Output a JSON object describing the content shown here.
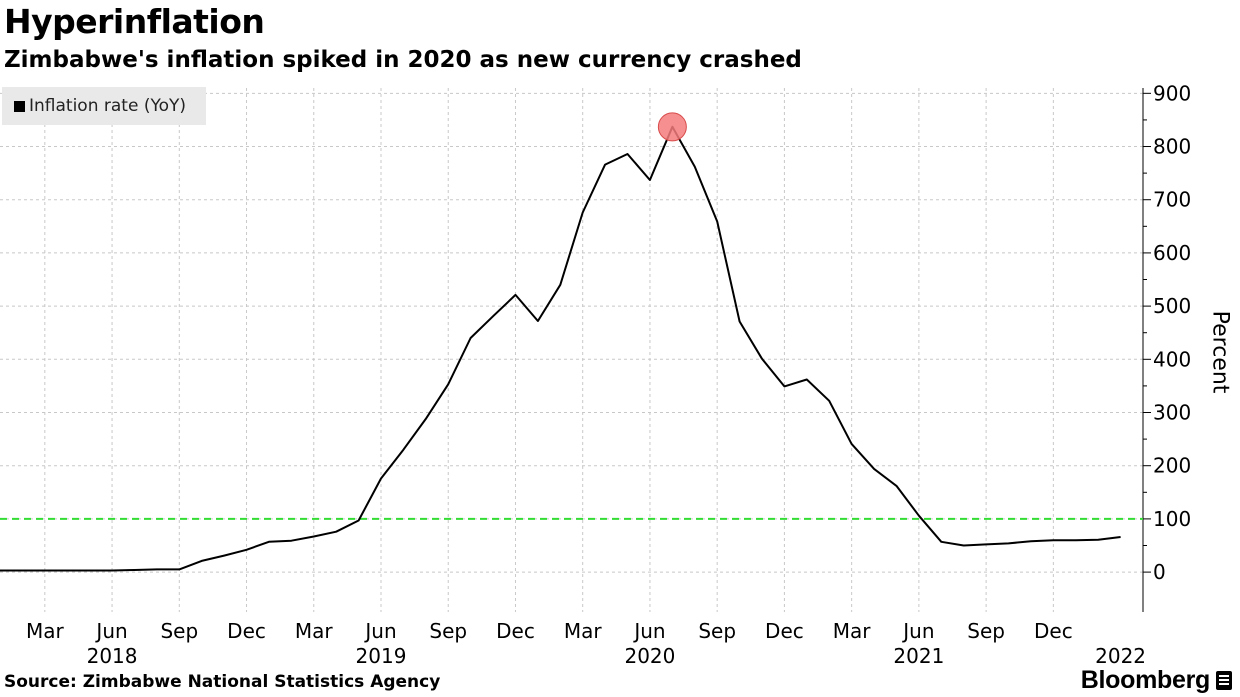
{
  "chart_data": {
    "type": "line",
    "title": "Hyperinflation",
    "subtitle": "Zimbabwe's inflation spiked in 2020 as new currency crashed",
    "ylabel": "Percent",
    "ylim": [
      -75,
      910
    ],
    "yticks": [
      0,
      100,
      200,
      300,
      400,
      500,
      600,
      700,
      800,
      900
    ],
    "grid": true,
    "legend_position": "top-left",
    "x_month_ticks": [
      {
        "label": "Mar",
        "date": "2018-03"
      },
      {
        "label": "Jun",
        "date": "2018-06"
      },
      {
        "label": "Sep",
        "date": "2018-09"
      },
      {
        "label": "Dec",
        "date": "2018-12"
      },
      {
        "label": "Mar",
        "date": "2019-03"
      },
      {
        "label": "Jun",
        "date": "2019-06"
      },
      {
        "label": "Sep",
        "date": "2019-09"
      },
      {
        "label": "Dec",
        "date": "2019-12"
      },
      {
        "label": "Mar",
        "date": "2020-03"
      },
      {
        "label": "Jun",
        "date": "2020-06"
      },
      {
        "label": "Sep",
        "date": "2020-09"
      },
      {
        "label": "Dec",
        "date": "2020-12"
      },
      {
        "label": "Mar",
        "date": "2021-03"
      },
      {
        "label": "Jun",
        "date": "2021-06"
      },
      {
        "label": "Sep",
        "date": "2021-09"
      },
      {
        "label": "Dec",
        "date": "2021-12"
      }
    ],
    "x_year_labels": [
      {
        "label": "2018",
        "date": "2018-06"
      },
      {
        "label": "2019",
        "date": "2019-06"
      },
      {
        "label": "2020",
        "date": "2020-06"
      },
      {
        "label": "2021",
        "date": "2021-06"
      },
      {
        "label": "2022",
        "date": "2022-03"
      }
    ],
    "reference_line": {
      "value": 100,
      "color": "#33dd33",
      "style": "dashed"
    },
    "highlight": {
      "date": "2020-07",
      "value": 837,
      "color": "#f47d7d"
    },
    "series": [
      {
        "name": "Inflation rate (YoY)",
        "color": "#000000",
        "x": [
          "2018-01",
          "2018-02",
          "2018-03",
          "2018-04",
          "2018-05",
          "2018-06",
          "2018-07",
          "2018-08",
          "2018-09",
          "2018-10",
          "2018-11",
          "2018-12",
          "2019-01",
          "2019-02",
          "2019-03",
          "2019-04",
          "2019-05",
          "2019-06",
          "2019-07",
          "2019-08",
          "2019-09",
          "2019-10",
          "2019-11",
          "2019-12",
          "2020-01",
          "2020-02",
          "2020-03",
          "2020-04",
          "2020-05",
          "2020-06",
          "2020-07",
          "2020-08",
          "2020-09",
          "2020-10",
          "2020-11",
          "2020-12",
          "2021-01",
          "2021-02",
          "2021-03",
          "2021-04",
          "2021-05",
          "2021-06",
          "2021-07",
          "2021-08",
          "2021-09",
          "2021-10",
          "2021-11",
          "2021-12",
          "2022-01",
          "2022-02",
          "2022-03"
        ],
        "values": [
          3,
          3,
          3,
          3,
          3,
          3,
          4,
          5,
          5,
          21,
          31,
          42,
          57,
          59,
          67,
          76,
          97,
          176,
          230,
          288,
          353,
          440,
          481,
          521,
          472,
          540,
          676,
          766,
          786,
          737,
          837,
          762,
          659,
          471,
          401,
          349,
          362,
          322,
          241,
          194,
          162,
          106,
          57,
          50,
          52,
          54,
          58,
          60,
          60,
          61,
          66
        ]
      }
    ]
  },
  "source": "Source: Zimbabwe National Statistics Agency",
  "brand": "Bloomberg",
  "icons": {
    "brand_icon": "terminal-icon"
  }
}
